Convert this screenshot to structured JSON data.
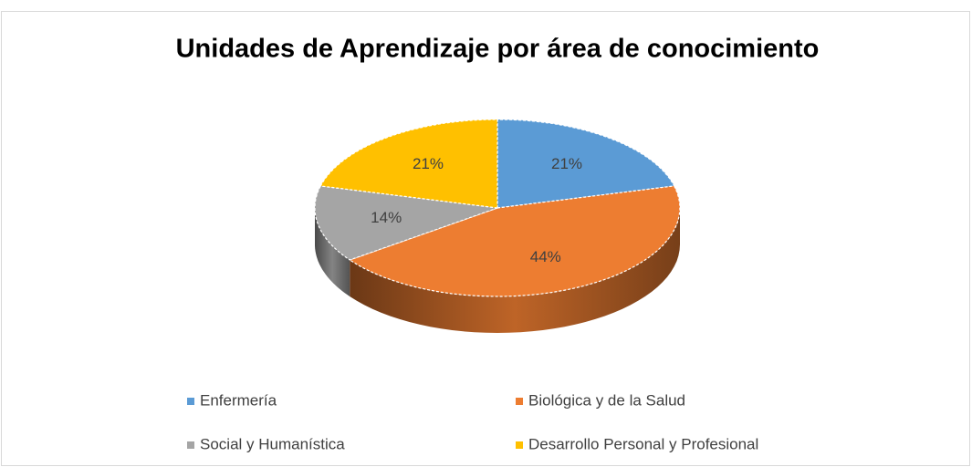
{
  "chart_data": {
    "type": "pie",
    "title": "Unidades de Aprendizaje por área de conocimiento",
    "categories": [
      "Enfermería",
      "Biológica y de la Salud",
      "Social y Humanística",
      "Desarrollo Personal y Profesional"
    ],
    "values": [
      21,
      44,
      14,
      21
    ],
    "value_labels": [
      "21%",
      "44%",
      "14%",
      "21%"
    ],
    "colors": [
      "#5b9bd5",
      "#ed7d31",
      "#a5a5a5",
      "#ffc000"
    ],
    "legend": "bottom"
  }
}
